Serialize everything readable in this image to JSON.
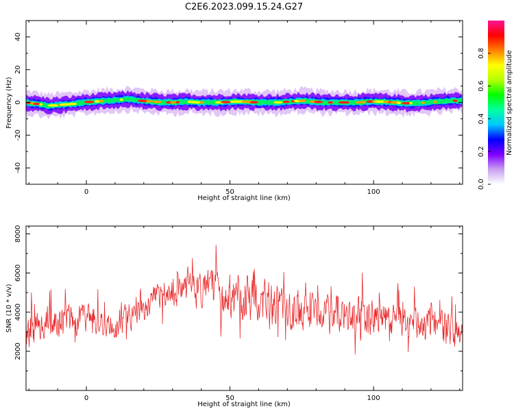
{
  "figure": {
    "title": "C2E6.2023.099.15.24.G27"
  },
  "chart_data": [
    {
      "type": "heatmap",
      "xlabel": "Height of straight line (km)",
      "ylabel": "Frequency (Hz)",
      "xlim": [
        -21,
        131
      ],
      "ylim": [
        -50,
        50
      ],
      "xticks": [
        "0",
        "50",
        "100"
      ],
      "xtick_values": [
        0,
        50,
        100
      ],
      "yticks": [
        "-40",
        "-20",
        "0",
        "20",
        "40"
      ],
      "ytick_values": [
        -40,
        -20,
        0,
        20,
        40
      ],
      "grid": false,
      "colorbar": {
        "label": "Normalized spectral amplitude",
        "range": [
          0,
          1
        ],
        "ticks": [
          "0.0",
          "0.2",
          "0.4",
          "0.6",
          "0.8"
        ],
        "tick_values": [
          0.0,
          0.2,
          0.4,
          0.6,
          0.8
        ],
        "colormap": [
          "#ffffff",
          "#c8a0f0",
          "#8000ff",
          "#0000ff",
          "#00c8ff",
          "#00ffa0",
          "#00ff00",
          "#b4ff00",
          "#ffff00",
          "#ff8000",
          "#ff0000",
          "#ff1493"
        ]
      },
      "band": {
        "center_hz": [
          0,
          -1,
          -2,
          -1.5,
          -1,
          0,
          0.5,
          1,
          1.5,
          2,
          1,
          0.5,
          0,
          0,
          0.5,
          0,
          0,
          0,
          0.5,
          0.5,
          0,
          0,
          0,
          0.5,
          1,
          0.5,
          0,
          0,
          0,
          0,
          0.5,
          0.5,
          0,
          -0.5,
          -0.5,
          0,
          0.5,
          1,
          1,
          1,
          1.5
        ],
        "center_x_km": [
          -21,
          -17,
          -13,
          -9,
          -5,
          -1,
          3,
          7,
          11,
          15,
          19,
          23,
          27,
          31,
          35,
          39,
          43,
          47,
          51,
          55,
          59,
          63,
          67,
          71,
          75,
          79,
          83,
          87,
          91,
          95,
          99,
          103,
          107,
          111,
          115,
          119,
          123,
          127,
          129,
          130,
          131
        ],
        "core_halfwidth_hz": 1.2,
        "mid_halfwidth_hz": 2.5,
        "outer_halfwidth_hz": 4.5,
        "halo_halfwidth_hz": 7
      }
    },
    {
      "type": "line",
      "xlabel": "Height of straight line (km)",
      "ylabel": "SNR (10 * v/v)",
      "xlim": [
        -21,
        131
      ],
      "ylim": [
        0,
        8400
      ],
      "xticks": [
        "0",
        "50",
        "100"
      ],
      "xtick_values": [
        0,
        50,
        100
      ],
      "yticks": [
        "2000",
        "4000",
        "6000",
        "8000"
      ],
      "ytick_values": [
        2000,
        4000,
        6000,
        8000
      ],
      "grid": false,
      "series": [
        {
          "color": "#e8282a",
          "envelope": {
            "x": [
              -21,
              -15,
              -10,
              -5,
              0,
              5,
              10,
              15,
              20,
              25,
              30,
              35,
              40,
              45,
              50,
              55,
              60,
              65,
              70,
              75,
              80,
              85,
              90,
              95,
              100,
              105,
              110,
              115,
              120,
              125,
              131
            ],
            "mean": [
              3000,
              3500,
              3600,
              3700,
              3700,
              3500,
              3300,
              3800,
              4200,
              4700,
              5000,
              5200,
              5200,
              5000,
              5000,
              4800,
              4600,
              4400,
              4200,
              4100,
              4000,
              3900,
              3800,
              3700,
              3700,
              3600,
              3500,
              3400,
              3400,
              3200,
              3100
            ],
            "spread": [
              900,
              900,
              800,
              800,
              800,
              700,
              700,
              700,
              700,
              800,
              800,
              900,
              900,
              1100,
              1200,
              1300,
              1200,
              1100,
              1100,
              1000,
              1000,
              1000,
              1000,
              900,
              900,
              900,
              800,
              800,
              900,
              900,
              900
            ]
          },
          "samples": 980
        }
      ]
    }
  ]
}
